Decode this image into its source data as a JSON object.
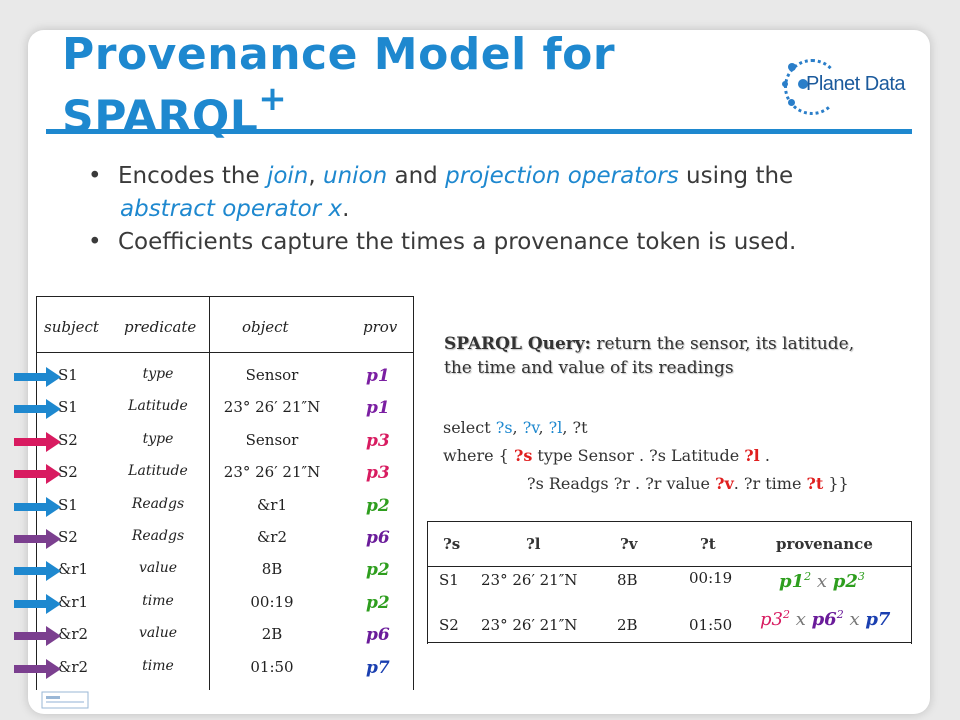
{
  "slide": {
    "title_main": "Provenance Model for SPARQL",
    "title_sup": "+"
  },
  "logo": {
    "text": "Planet Data"
  },
  "bullets": {
    "b1": {
      "t1": "Encodes the ",
      "join": "join",
      "t2": ", ",
      "union": "union",
      "t3": " and ",
      "projection": "projection operators",
      "t4": " using the",
      "abstract": "abstract operator x",
      "t5": "."
    },
    "b2": "Coefficients capture the times a provenance token is used."
  },
  "triples": {
    "headers": {
      "subject": "subject",
      "predicate": "predicate",
      "object": "object",
      "prov": "prov"
    },
    "rows": [
      {
        "subject": "S1",
        "predicate": "type",
        "object": "Sensor",
        "prov": "p1",
        "prov_color": "#7b1fa2",
        "arrow_color": "#1e88cf"
      },
      {
        "subject": "S1",
        "predicate": "Latitude",
        "object": "23° 26′ 21″N",
        "prov": "p1",
        "prov_color": "#7b1fa2",
        "arrow_color": "#1e88cf"
      },
      {
        "subject": "S2",
        "predicate": "type",
        "object": "Sensor",
        "prov": "p3",
        "prov_color": "#d81b60",
        "arrow_color": "#d81b60"
      },
      {
        "subject": "S2",
        "predicate": "Latitude",
        "object": "23° 26′ 21″N",
        "prov": "p3",
        "prov_color": "#d81b60",
        "arrow_color": "#d81b60"
      },
      {
        "subject": "S1",
        "predicate": "Readgs",
        "object": "&r1",
        "prov": "p2",
        "prov_color": "#2e9e1e",
        "arrow_color": "#1e88cf"
      },
      {
        "subject": "S2",
        "predicate": "Readgs",
        "object": "&r2",
        "prov": "p6",
        "prov_color": "#6a1b9a",
        "arrow_color": "#7b3f8f"
      },
      {
        "subject": "&r1",
        "predicate": "value",
        "object": "8B",
        "prov": "p2",
        "prov_color": "#2e9e1e",
        "arrow_color": "#1e88cf"
      },
      {
        "subject": "&r1",
        "predicate": "time",
        "object": "00:19",
        "prov": "p2",
        "prov_color": "#2e9e1e",
        "arrow_color": "#1e88cf"
      },
      {
        "subject": "&r2",
        "predicate": "value",
        "object": "2B",
        "prov": "p6",
        "prov_color": "#6a1b9a",
        "arrow_color": "#7b3f8f"
      },
      {
        "subject": "&r2",
        "predicate": "time",
        "object": "01:50",
        "prov": "p7",
        "prov_color": "#1a3fb0",
        "arrow_color": "#7b3f8f"
      }
    ]
  },
  "query": {
    "head_label": "SPARQL Query:",
    "head_text_1": " return the sensor, its latitude,",
    "head_text_2": "the time and value of its readings",
    "line1": {
      "a": "select ",
      "s": "?s",
      "c1": ", ",
      "v": "?v",
      "c2": ", ",
      "l": "?l",
      "c3": ", ?t"
    },
    "line2": {
      "a": "where { ",
      "s": "?s",
      "b": " type Sensor . ?s Latitude ",
      "l": "?l",
      "c": " ."
    },
    "line3": {
      "a": "?s Readgs ?r . ?r value ",
      "v": "?v",
      "b": ". ?r time ",
      "t": "?t",
      "c": " }}"
    }
  },
  "results": {
    "headers": {
      "s": "?s",
      "l": "?l",
      "v": "?v",
      "t": "?t",
      "provenance": "provenance"
    },
    "rows": [
      {
        "s": "S1",
        "l": "23° 26′ 21″N",
        "v": "8B",
        "t": "00:19",
        "prov": {
          "a": "p1",
          "a_exp": "2",
          "x": " x ",
          "b": "p2",
          "b_exp": "3"
        }
      },
      {
        "s": "S2",
        "l": "23° 26′ 21″N",
        "v": "2B",
        "t": "01:50",
        "prov": {
          "a": "p3",
          "a_exp": "2",
          "x1": " x ",
          "b": "p6",
          "b_exp": "2",
          "x2": " x ",
          "c": "p7"
        }
      }
    ]
  },
  "colors": {
    "accent": "#1e88cf",
    "red": "#e02020"
  }
}
